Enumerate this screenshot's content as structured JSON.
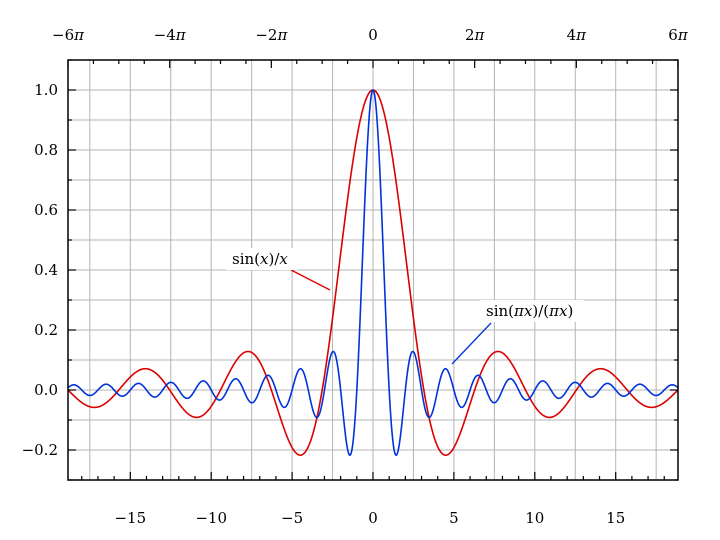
{
  "chart_data": {
    "type": "line",
    "title": "",
    "xlabel": "",
    "ylabel": "",
    "xlim": [
      -18.85,
      18.85
    ],
    "ylim": [
      -0.3,
      1.1
    ],
    "grid": true,
    "x_ticks": [
      -15,
      -10,
      -5,
      0,
      5,
      10,
      15
    ],
    "x_tick_labels": [
      "−15",
      "−10",
      "−5",
      "0",
      "5",
      "10",
      "15"
    ],
    "top_ticks": [
      -18.85,
      -12.566,
      -6.283,
      0,
      6.283,
      12.566,
      18.85
    ],
    "top_tick_labels": [
      {
        "coef": "−6",
        "sym": "π"
      },
      {
        "coef": "−4",
        "sym": "π"
      },
      {
        "coef": "−2",
        "sym": "π"
      },
      {
        "coef": "0",
        "sym": ""
      },
      {
        "coef": "2",
        "sym": "π"
      },
      {
        "coef": "4",
        "sym": "π"
      },
      {
        "coef": "6",
        "sym": "π"
      }
    ],
    "y_ticks": [
      -0.2,
      0.0,
      0.2,
      0.4,
      0.6,
      0.8,
      1.0
    ],
    "y_tick_labels": [
      "−0.2",
      "0.0",
      "0.2",
      "0.4",
      "0.6",
      "0.8",
      "1.0"
    ],
    "series": [
      {
        "name": "sin(x)/x",
        "color": "#dd0000",
        "x": [
          -18.85,
          -17.22,
          -15.5,
          -14.07,
          -12.566,
          -10.9,
          -9.42,
          -7.725,
          -6.283,
          -4.493,
          -3.14159,
          -1.5708,
          0,
          1.5708,
          3.14159,
          4.493,
          6.283,
          7.725,
          9.42,
          10.9,
          12.566,
          14.07,
          15.5,
          17.22,
          18.85
        ],
        "values": [
          0.0,
          -0.058,
          0.0,
          0.071,
          0.0,
          -0.091,
          0.0,
          0.128,
          0.0,
          -0.217,
          0.0,
          0.637,
          1.0,
          0.637,
          0.0,
          -0.217,
          0.0,
          0.128,
          0.0,
          -0.091,
          0.0,
          0.071,
          0.0,
          -0.058,
          0.0
        ]
      },
      {
        "name": "sin(πx)/(πx)",
        "color": "#0033dd",
        "x": [
          -2.5,
          -2.0,
          -1.43,
          -1.0,
          -0.5,
          0,
          0.5,
          1.0,
          1.43,
          2.0,
          2.5
        ],
        "values": [
          0.127,
          0.0,
          -0.217,
          0.0,
          0.637,
          1.0,
          0.637,
          0.0,
          -0.217,
          0.0,
          0.127
        ]
      }
    ],
    "annotations": [
      {
        "label": "sin(x)/x",
        "series": "sin(x)/x"
      },
      {
        "label": "sin(πx)/(πx)",
        "series": "sin(πx)/(πx)"
      }
    ]
  }
}
